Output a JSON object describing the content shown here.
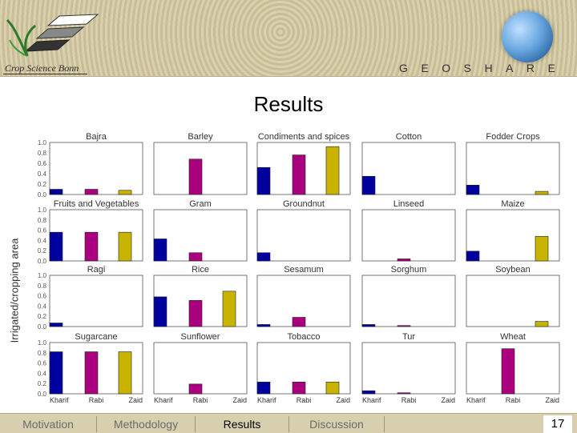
{
  "header": {
    "logo_text": "Crop Science Bonn",
    "brand": "GEOSHARE"
  },
  "slide": {
    "title": "Results",
    "y_axis_label": "Irrigated/cropping area"
  },
  "footer": {
    "tabs": [
      {
        "label": "Motivation"
      },
      {
        "label": "Methodology"
      },
      {
        "label": "Results"
      },
      {
        "label": "Discussion"
      }
    ],
    "page_number": "17"
  },
  "colors": {
    "Kharif": "#00009f",
    "Rabi": "#aa007f",
    "Zaid": "#c8b400"
  },
  "chart_data": {
    "type": "bar",
    "categories": [
      "Kharif",
      "Rabi",
      "Zaid"
    ],
    "ylim": [
      0,
      1.0
    ],
    "yticks": [
      "1.0",
      "0.8",
      "0.6",
      "0.4",
      "0.2",
      "0.0"
    ],
    "panels": [
      {
        "title": "Bajra",
        "values": [
          0.1,
          0.1,
          0.08
        ]
      },
      {
        "title": "Barley",
        "values": [
          0,
          0.68,
          0
        ]
      },
      {
        "title": "Condiments and spices",
        "values": [
          0.52,
          0.76,
          0.92
        ]
      },
      {
        "title": "Cotton",
        "values": [
          0.35,
          0,
          0
        ]
      },
      {
        "title": "Fodder Crops",
        "values": [
          0.18,
          0,
          0.06
        ]
      },
      {
        "title": "Fruits and Vegetables",
        "values": [
          0.56,
          0.56,
          0.56
        ]
      },
      {
        "title": "Gram",
        "values": [
          0.43,
          0.16,
          0
        ]
      },
      {
        "title": "Groundnut",
        "values": [
          0.16,
          0,
          0
        ]
      },
      {
        "title": "Linseed",
        "values": [
          0,
          0.04,
          0
        ]
      },
      {
        "title": "Maize",
        "values": [
          0.19,
          0,
          0.48
        ]
      },
      {
        "title": "Ragi",
        "values": [
          0.07,
          0,
          0
        ]
      },
      {
        "title": "Rice",
        "values": [
          0.58,
          0.51,
          0.69
        ]
      },
      {
        "title": "Sesamum",
        "values": [
          0.04,
          0.18,
          0
        ]
      },
      {
        "title": "Sorghum",
        "values": [
          0.04,
          0.02,
          0
        ]
      },
      {
        "title": "Soybean",
        "values": [
          0,
          0,
          0.1
        ]
      },
      {
        "title": "Sugarcane",
        "values": [
          0.82,
          0.82,
          0.82
        ]
      },
      {
        "title": "Sunflower",
        "values": [
          0,
          0.19,
          0
        ]
      },
      {
        "title": "Tobacco",
        "values": [
          0.23,
          0.23,
          0.23
        ]
      },
      {
        "title": "Tur",
        "values": [
          0.06,
          0.02,
          0
        ]
      },
      {
        "title": "Wheat",
        "values": [
          0,
          0.88,
          0
        ]
      }
    ]
  }
}
